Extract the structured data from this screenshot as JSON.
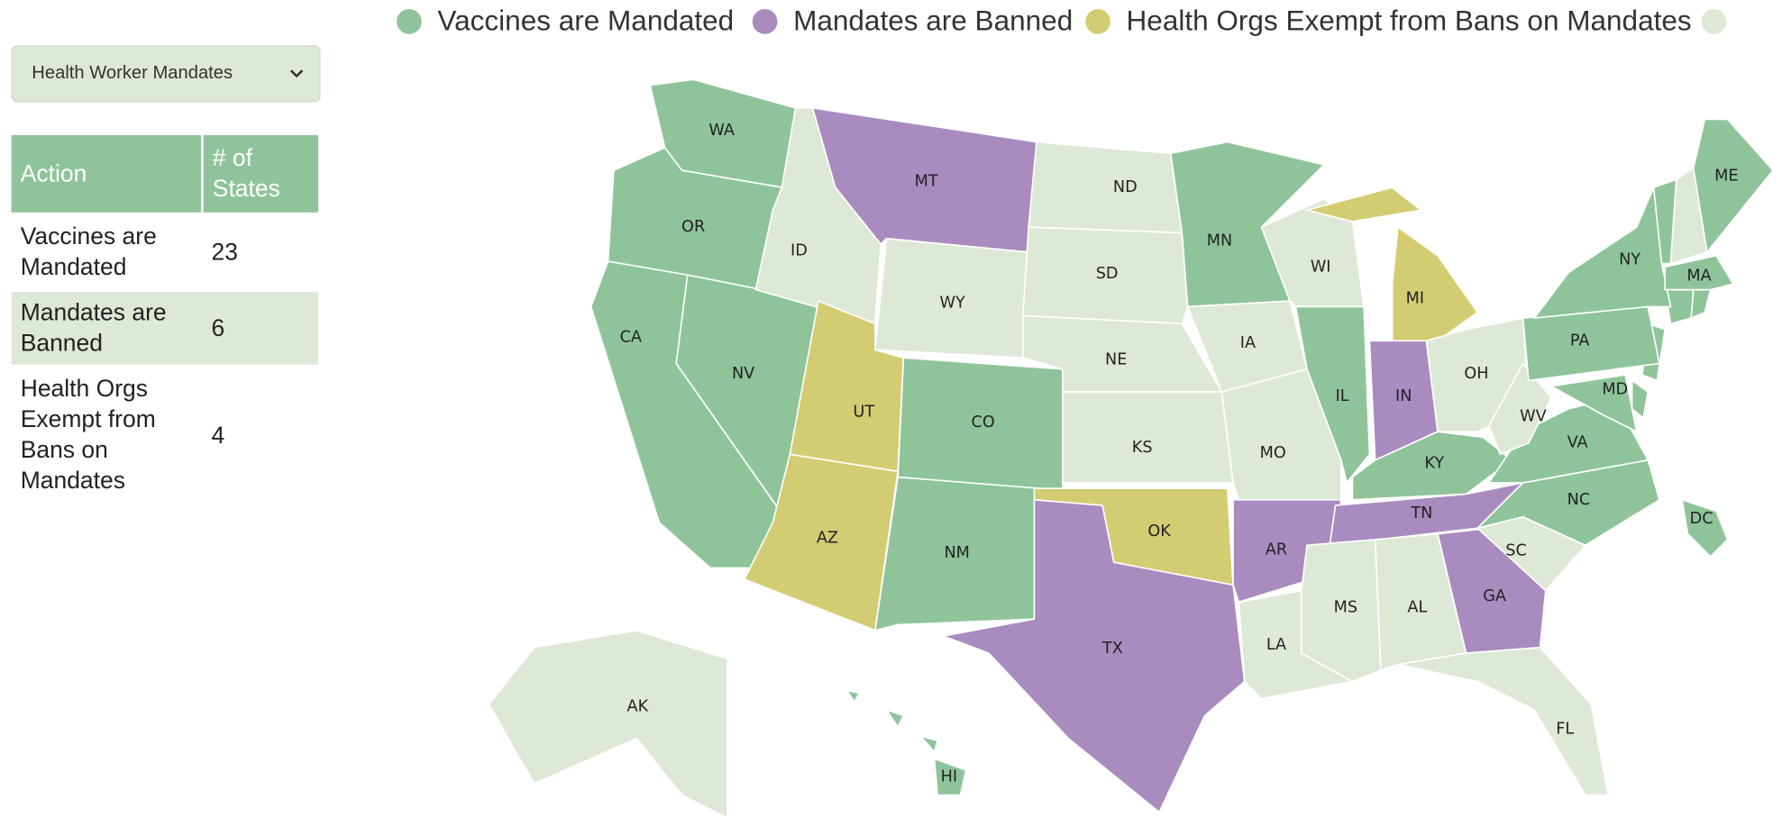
{
  "dropdown": "Health Worker Mandates",
  "legend": [
    {
      "name": "Vaccines are Mandated",
      "color": "#8fc49a"
    },
    {
      "name": "Mandates are Banned",
      "color": "#a98bbf"
    },
    {
      "name": "Health Orgs Exempt from Bans on Mandates",
      "color": "#d4cc72"
    },
    {
      "color": "#dde9d6"
    }
  ],
  "table": {
    "header": [
      "Action",
      "# of States"
    ],
    "rows": [
      [
        "Vaccines are Mandated",
        23
      ],
      [
        "Mandates are Banned",
        6
      ],
      [
        "Health Orgs Exempt from Bans on Mandates",
        4
      ]
    ]
  },
  "states": [
    {
      "label": "WA",
      "group": 0
    },
    {
      "label": "OR",
      "group": 0
    },
    {
      "label": "CA",
      "group": 0
    },
    {
      "label": "NV",
      "group": 0
    },
    {
      "label": "ID",
      "group": 3
    },
    {
      "label": "MT",
      "group": 1
    },
    {
      "label": "WY",
      "group": 3
    },
    {
      "label": "UT",
      "group": 2
    },
    {
      "label": "CO",
      "group": 0
    },
    {
      "label": "AZ",
      "group": 2
    },
    {
      "label": "NM",
      "group": 0
    },
    {
      "label": "ND",
      "group": 3
    },
    {
      "label": "SD",
      "group": 3
    },
    {
      "label": "NE",
      "group": 3
    },
    {
      "label": "KS",
      "group": 3
    },
    {
      "label": "OK",
      "group": 2
    },
    {
      "label": "TX",
      "group": 1
    },
    {
      "label": "MN",
      "group": 0
    },
    {
      "label": "IA",
      "group": 3
    },
    {
      "label": "MO",
      "group": 3
    },
    {
      "label": "AR",
      "group": 1
    },
    {
      "label": "LA",
      "group": 3
    },
    {
      "label": "WI",
      "group": 3
    },
    {
      "label": "IL",
      "group": 0
    },
    {
      "label": "MI",
      "group": 2
    },
    {
      "label": "IN",
      "group": 1
    },
    {
      "label": "OH",
      "group": 3
    },
    {
      "label": "KY",
      "group": 0
    },
    {
      "label": "TN",
      "group": 1
    },
    {
      "label": "MS",
      "group": 3
    },
    {
      "label": "AL",
      "group": 3
    },
    {
      "label": "GA",
      "group": 1
    },
    {
      "label": "FL",
      "group": 3
    },
    {
      "label": "SC",
      "group": 3
    },
    {
      "label": "NC",
      "group": 0
    },
    {
      "label": "VA",
      "group": 0
    },
    {
      "label": "WV",
      "group": 3
    },
    {
      "label": "PA",
      "group": 0
    },
    {
      "label": "NY",
      "group": 0
    },
    {
      "label": "MD",
      "group": 0
    },
    {
      "label": "MA",
      "group": 0
    },
    {
      "label": "ME",
      "group": 0
    },
    {
      "label": "DC",
      "group": 0
    },
    {
      "label": "AK",
      "group": 3
    },
    {
      "label": "HI",
      "group": 0
    }
  ]
}
